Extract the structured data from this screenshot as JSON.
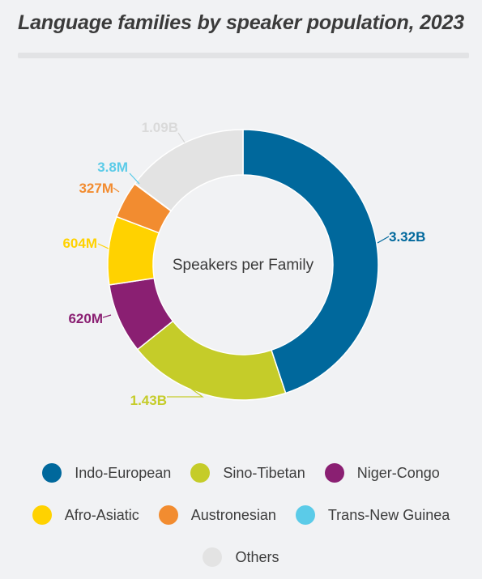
{
  "title": "Language families by speaker population, 2023",
  "chart_data": {
    "type": "pie",
    "variant": "donut",
    "center_label": "Speakers per Family",
    "slices": [
      {
        "name": "Indo-European",
        "value": 3.32,
        "label": "3.32B",
        "color": "#00689c"
      },
      {
        "name": "Sino-Tibetan",
        "value": 1.43,
        "label": "1.43B",
        "color": "#c5cc29"
      },
      {
        "name": "Niger-Congo",
        "value": 0.62,
        "label": "620M",
        "color": "#8a1f72"
      },
      {
        "name": "Afro-Asiatic",
        "value": 0.604,
        "label": "604M",
        "color": "#ffd200"
      },
      {
        "name": "Austronesian",
        "value": 0.327,
        "label": "327M",
        "color": "#f28c30"
      },
      {
        "name": "Trans-New Guinea",
        "value": 0.0038,
        "label": "3.8M",
        "color": "#5bcbe8"
      },
      {
        "name": "Others",
        "value": 1.09,
        "label": "1.09B",
        "color": "#e3e3e3"
      }
    ],
    "value_unit": "billion speakers",
    "legend_position": "bottom"
  }
}
